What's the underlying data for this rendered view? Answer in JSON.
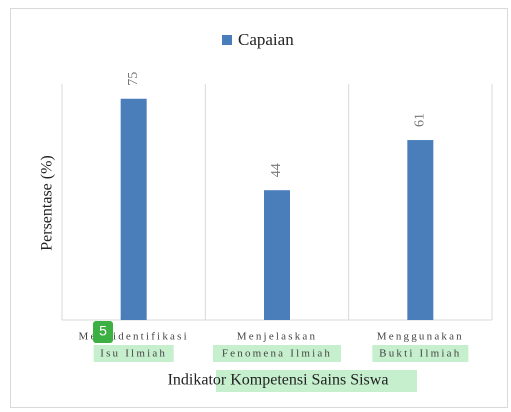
{
  "chart_data": {
    "type": "bar",
    "legend": "Capaian",
    "y_label": "Persentase (%)",
    "x_label": "Indikator Kompetensi Sains Siswa",
    "categories": [
      [
        "Mengidentifikasi",
        "Isu Ilmiah"
      ],
      [
        "Menjelaskan",
        "Fenomena Ilmiah"
      ],
      [
        "Menggunakan",
        "Bukti Ilmiah"
      ]
    ],
    "values": [
      75,
      44,
      61
    ],
    "color": "#4a7ebb",
    "ylim": [
      0,
      80
    ],
    "badge": "5"
  }
}
